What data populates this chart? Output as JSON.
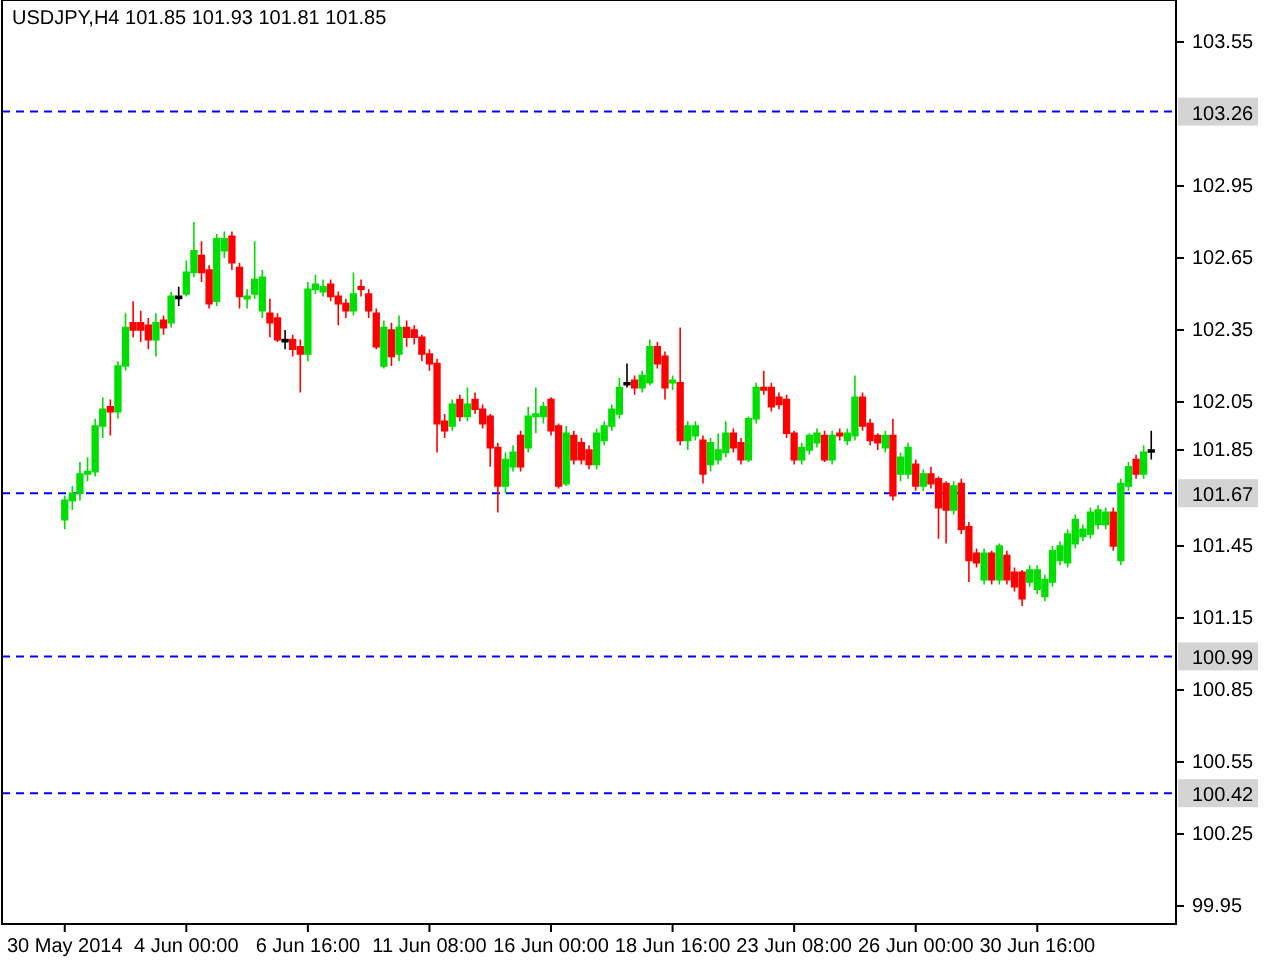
{
  "chart_data": {
    "type": "candlestick",
    "title": "USDJPY,H4 101.85 101.93 101.81 101.85",
    "categories": [
      "30 May 2014",
      null,
      null,
      null,
      null,
      null,
      null,
      null,
      null,
      null,
      null,
      null,
      null,
      null,
      null,
      null,
      "4 Jun 00:00",
      null,
      null,
      null,
      null,
      null,
      null,
      null,
      null,
      null,
      null,
      null,
      null,
      null,
      null,
      null,
      "6 Jun 16:00",
      null,
      null,
      null,
      null,
      null,
      null,
      null,
      null,
      null,
      null,
      null,
      null,
      null,
      null,
      null,
      "11 Jun 08:00",
      null,
      null,
      null,
      null,
      null,
      null,
      null,
      null,
      null,
      null,
      null,
      null,
      null,
      null,
      null,
      "16 Jun 00:00",
      null,
      null,
      null,
      null,
      null,
      null,
      null,
      null,
      null,
      null,
      null,
      null,
      null,
      null,
      null,
      "18 Jun 16:00",
      null,
      null,
      null,
      null,
      null,
      null,
      null,
      null,
      null,
      null,
      null,
      null,
      null,
      null,
      null,
      "23 Jun 08:00",
      null,
      null,
      null,
      null,
      null,
      null,
      null,
      null,
      null,
      null,
      null,
      null,
      null,
      null,
      null,
      "26 Jun 00:00",
      null,
      null,
      null,
      null,
      null,
      null,
      null,
      null,
      null,
      null,
      null,
      null,
      null,
      null,
      null,
      "30 Jun 16:00",
      null,
      null,
      null,
      null,
      null,
      null,
      null,
      null,
      null,
      null,
      null,
      null,
      null,
      null,
      null
    ],
    "ohlc": [
      [
        101.56,
        101.66,
        101.52,
        101.64
      ],
      [
        101.64,
        101.7,
        101.6,
        101.67
      ],
      [
        101.67,
        101.8,
        101.64,
        101.75
      ],
      [
        101.75,
        101.82,
        101.72,
        101.76
      ],
      [
        101.76,
        101.98,
        101.74,
        101.95
      ],
      [
        101.95,
        102.07,
        101.9,
        102.02
      ],
      [
        102.03,
        102.06,
        101.91,
        102.01
      ],
      [
        102.01,
        102.22,
        101.98,
        102.2
      ],
      [
        102.2,
        102.42,
        102.18,
        102.36
      ],
      [
        102.38,
        102.47,
        102.32,
        102.35
      ],
      [
        102.38,
        102.43,
        102.3,
        102.35
      ],
      [
        102.37,
        102.4,
        102.27,
        102.31
      ],
      [
        102.31,
        102.42,
        102.24,
        102.38
      ],
      [
        102.39,
        102.41,
        102.33,
        102.36
      ],
      [
        102.38,
        102.51,
        102.36,
        102.49
      ],
      [
        102.49,
        102.53,
        102.45,
        102.49
      ],
      [
        102.5,
        102.64,
        102.49,
        102.59
      ],
      [
        102.59,
        102.8,
        102.57,
        102.68
      ],
      [
        102.66,
        102.72,
        102.55,
        102.59
      ],
      [
        102.6,
        102.62,
        102.44,
        102.46
      ],
      [
        102.47,
        102.75,
        102.45,
        102.73
      ],
      [
        102.68,
        102.76,
        102.65,
        102.73
      ],
      [
        102.74,
        102.76,
        102.6,
        102.63
      ],
      [
        102.61,
        102.63,
        102.44,
        102.49
      ],
      [
        102.48,
        102.52,
        102.44,
        102.49
      ],
      [
        102.5,
        102.72,
        102.48,
        102.56
      ],
      [
        102.43,
        102.6,
        102.4,
        102.57
      ],
      [
        102.42,
        102.48,
        102.32,
        102.38
      ],
      [
        102.4,
        102.42,
        102.3,
        102.31
      ],
      [
        102.31,
        102.35,
        102.27,
        102.31
      ],
      [
        102.31,
        102.33,
        102.24,
        102.27
      ],
      [
        102.28,
        102.31,
        102.09,
        102.25
      ],
      [
        102.25,
        102.55,
        102.22,
        102.52
      ],
      [
        102.52,
        102.58,
        102.5,
        102.54
      ],
      [
        102.51,
        102.56,
        102.49,
        102.53
      ],
      [
        102.54,
        102.56,
        102.47,
        102.49
      ],
      [
        102.49,
        102.51,
        102.37,
        102.46
      ],
      [
        102.46,
        102.48,
        102.4,
        102.43
      ],
      [
        102.43,
        102.59,
        102.41,
        102.5
      ],
      [
        102.53,
        102.56,
        102.49,
        102.52
      ],
      [
        102.5,
        102.52,
        102.4,
        102.43
      ],
      [
        102.42,
        102.44,
        102.27,
        102.28
      ],
      [
        102.2,
        102.39,
        102.19,
        102.36
      ],
      [
        102.35,
        102.38,
        102.2,
        102.24
      ],
      [
        102.25,
        102.41,
        102.22,
        102.36
      ],
      [
        102.36,
        102.39,
        102.28,
        102.32
      ],
      [
        102.35,
        102.37,
        102.29,
        102.32
      ],
      [
        102.32,
        102.33,
        102.22,
        102.25
      ],
      [
        102.25,
        102.27,
        102.18,
        102.21
      ],
      [
        102.21,
        102.23,
        101.84,
        101.96
      ],
      [
        101.97,
        102.0,
        101.9,
        101.93
      ],
      [
        101.95,
        102.06,
        101.93,
        102.04
      ],
      [
        102.06,
        102.08,
        101.97,
        101.99
      ],
      [
        101.99,
        102.11,
        101.97,
        102.04
      ],
      [
        102.06,
        102.09,
        102.0,
        102.02
      ],
      [
        102.02,
        102.04,
        101.94,
        101.96
      ],
      [
        101.99,
        102.0,
        101.78,
        101.86
      ],
      [
        101.86,
        101.88,
        101.59,
        101.7
      ],
      [
        101.7,
        101.84,
        101.67,
        101.81
      ],
      [
        101.78,
        101.87,
        101.76,
        101.84
      ],
      [
        101.91,
        101.93,
        101.76,
        101.78
      ],
      [
        101.86,
        102.03,
        101.84,
        101.99
      ],
      [
        101.99,
        102.11,
        101.92,
        102.0
      ],
      [
        101.99,
        102.05,
        101.96,
        102.03
      ],
      [
        102.06,
        102.07,
        101.91,
        101.93
      ],
      [
        101.95,
        101.96,
        101.69,
        101.7
      ],
      [
        101.71,
        101.95,
        101.7,
        101.92
      ],
      [
        101.91,
        101.93,
        101.79,
        101.81
      ],
      [
        101.88,
        101.9,
        101.79,
        101.81
      ],
      [
        101.85,
        101.87,
        101.77,
        101.79
      ],
      [
        101.79,
        101.94,
        101.77,
        101.92
      ],
      [
        101.89,
        101.97,
        101.87,
        101.95
      ],
      [
        101.95,
        102.04,
        101.93,
        102.02
      ],
      [
        102.0,
        102.15,
        101.98,
        102.11
      ],
      [
        102.13,
        102.21,
        102.11,
        102.13
      ],
      [
        102.14,
        102.16,
        102.08,
        102.11
      ],
      [
        102.11,
        102.18,
        102.09,
        102.16
      ],
      [
        102.13,
        102.31,
        102.12,
        102.28
      ],
      [
        102.28,
        102.3,
        102.19,
        102.21
      ],
      [
        102.24,
        102.26,
        102.06,
        102.11
      ],
      [
        102.13,
        102.16,
        102.1,
        102.14
      ],
      [
        102.13,
        102.36,
        101.87,
        101.89
      ],
      [
        101.89,
        101.97,
        101.85,
        101.95
      ],
      [
        101.91,
        101.97,
        101.89,
        101.95
      ],
      [
        101.89,
        101.91,
        101.71,
        101.75
      ],
      [
        101.79,
        101.9,
        101.76,
        101.88
      ],
      [
        101.81,
        101.92,
        101.79,
        101.85
      ],
      [
        101.84,
        101.97,
        101.82,
        101.92
      ],
      [
        101.92,
        101.94,
        101.84,
        101.86
      ],
      [
        101.88,
        101.9,
        101.79,
        101.81
      ],
      [
        101.81,
        101.99,
        101.8,
        101.98
      ],
      [
        101.98,
        102.13,
        101.96,
        102.11
      ],
      [
        102.11,
        102.18,
        102.08,
        102.1
      ],
      [
        102.11,
        102.13,
        102.01,
        102.03
      ],
      [
        102.07,
        102.09,
        102.02,
        102.04
      ],
      [
        102.06,
        102.08,
        101.9,
        101.92
      ],
      [
        101.92,
        101.93,
        101.79,
        101.81
      ],
      [
        101.81,
        101.88,
        101.79,
        101.86
      ],
      [
        101.85,
        101.92,
        101.83,
        101.91
      ],
      [
        101.88,
        101.94,
        101.86,
        101.92
      ],
      [
        101.91,
        101.93,
        101.8,
        101.81
      ],
      [
        101.81,
        101.93,
        101.79,
        101.91
      ],
      [
        101.92,
        101.94,
        101.89,
        101.91
      ],
      [
        101.89,
        101.94,
        101.87,
        101.92
      ],
      [
        101.91,
        102.16,
        101.89,
        102.07
      ],
      [
        102.07,
        102.09,
        101.93,
        101.95
      ],
      [
        101.96,
        101.98,
        101.87,
        101.89
      ],
      [
        101.91,
        101.92,
        101.85,
        101.88
      ],
      [
        101.86,
        101.93,
        101.84,
        101.91
      ],
      [
        101.91,
        101.98,
        101.64,
        101.66
      ],
      [
        101.75,
        101.84,
        101.72,
        101.82
      ],
      [
        101.75,
        101.88,
        101.73,
        101.86
      ],
      [
        101.79,
        101.81,
        101.68,
        101.7
      ],
      [
        101.7,
        101.77,
        101.68,
        101.75
      ],
      [
        101.75,
        101.78,
        101.69,
        101.71
      ],
      [
        101.73,
        101.74,
        101.48,
        101.61
      ],
      [
        101.71,
        101.72,
        101.46,
        101.6
      ],
      [
        101.6,
        101.72,
        101.58,
        101.7
      ],
      [
        101.71,
        101.73,
        101.5,
        101.52
      ],
      [
        101.53,
        101.55,
        101.3,
        101.39
      ],
      [
        101.42,
        101.44,
        101.36,
        101.38
      ],
      [
        101.31,
        101.44,
        101.29,
        101.42
      ],
      [
        101.42,
        101.43,
        101.29,
        101.31
      ],
      [
        101.31,
        101.46,
        101.29,
        101.45
      ],
      [
        101.41,
        101.43,
        101.29,
        101.31
      ],
      [
        101.34,
        101.36,
        101.26,
        101.28
      ],
      [
        101.34,
        101.35,
        101.2,
        101.23
      ],
      [
        101.3,
        101.37,
        101.28,
        101.35
      ],
      [
        101.27,
        101.37,
        101.25,
        101.35
      ],
      [
        101.24,
        101.33,
        101.22,
        101.31
      ],
      [
        101.3,
        101.45,
        101.28,
        101.43
      ],
      [
        101.39,
        101.47,
        101.37,
        101.45
      ],
      [
        101.38,
        101.52,
        101.36,
        101.5
      ],
      [
        101.46,
        101.58,
        101.44,
        101.56
      ],
      [
        101.49,
        101.54,
        101.47,
        101.52
      ],
      [
        101.5,
        101.61,
        101.48,
        101.59
      ],
      [
        101.54,
        101.62,
        101.52,
        101.6
      ],
      [
        101.54,
        101.61,
        101.52,
        101.59
      ],
      [
        101.59,
        101.61,
        101.43,
        101.45
      ],
      [
        101.39,
        101.73,
        101.37,
        101.71
      ],
      [
        101.7,
        101.8,
        101.68,
        101.78
      ],
      [
        101.81,
        101.83,
        101.73,
        101.75
      ],
      [
        101.75,
        101.87,
        101.73,
        101.84
      ],
      [
        101.85,
        101.93,
        101.81,
        101.85
      ]
    ],
    "ylim": [
      99.875,
      103.725
    ],
    "yticks": [
      103.55,
      102.95,
      102.65,
      102.35,
      102.05,
      101.85,
      101.45,
      101.15,
      100.85,
      100.55,
      100.25,
      99.95
    ],
    "ref_lines": [
      {
        "axis": "y",
        "value": 103.26,
        "label": "103.26",
        "color": "#0000ff",
        "line_style": "dashed"
      },
      {
        "axis": "y",
        "value": 101.67,
        "label": "101.67",
        "color": "#0000ff",
        "line_style": "dashed"
      },
      {
        "axis": "y",
        "value": 100.99,
        "label": "100.99",
        "color": "#0000ff",
        "line_style": "dashed"
      },
      {
        "axis": "y",
        "value": 100.42,
        "label": "100.42",
        "color": "#0000ff",
        "line_style": "dashed"
      }
    ],
    "grid": false
  }
}
